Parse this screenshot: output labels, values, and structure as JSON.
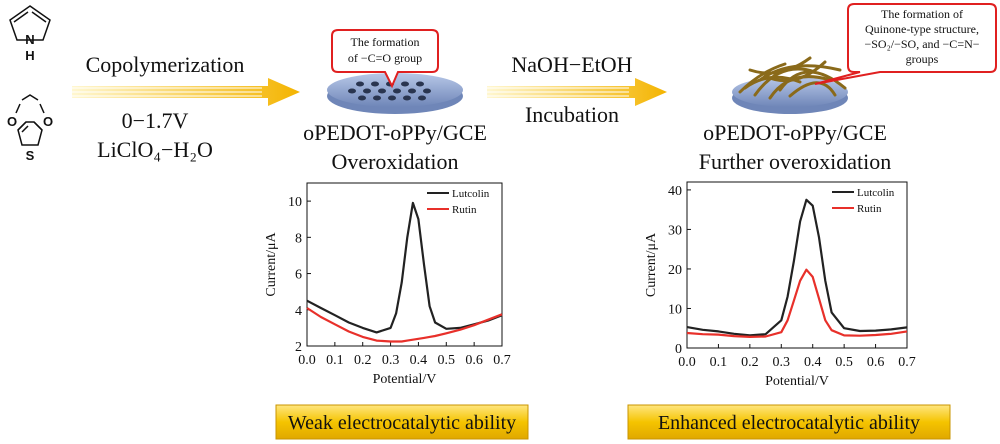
{
  "molecules": {
    "pyrrole": {
      "n": "N",
      "h": "H"
    },
    "edot": {
      "o1": "O",
      "o2": "O",
      "s": "S"
    }
  },
  "step1": {
    "label": "Copolymerization",
    "potential": "0−1.7V",
    "electrolyte": "LiClO₄−H₂O"
  },
  "callout1": {
    "lines": [
      "The formation",
      "of −C=O group"
    ]
  },
  "electrode1": {
    "name": "oPEDOT-oPPy/GCE",
    "state": "Overoxidation"
  },
  "step2": {
    "reagent": "NaOH−EtOH",
    "label": "Incubation"
  },
  "callout2": {
    "lines": [
      "The formation of",
      "Quinone-type structure,",
      "−SO₂/−SO, and −C=N−",
      "groups"
    ]
  },
  "electrode2": {
    "name": "oPEDOT-oPPy/GCE",
    "state": "Further overoxidation"
  },
  "result1": "Weak electrocatalytic ability",
  "result2": "Enhanced electrocatalytic ability",
  "chart_data": [
    {
      "type": "line",
      "xlabel": "Potential/V",
      "ylabel": "Current/μA",
      "x": [
        0,
        0.05,
        0.1,
        0.15,
        0.2,
        0.25,
        0.3,
        0.32,
        0.34,
        0.36,
        0.38,
        0.4,
        0.42,
        0.44,
        0.46,
        0.5,
        0.55,
        0.6,
        0.65,
        0.7
      ],
      "xlim": [
        0,
        0.7
      ],
      "xticks": [
        {
          "value": 0,
          "label": "0.0"
        },
        0.1,
        0.2,
        0.3,
        0.4,
        0.5,
        0.6,
        0.7
      ],
      "ylim": [
        2,
        11
      ],
      "yticks": [
        2,
        4,
        6,
        8,
        10
      ],
      "legend": "upper right",
      "series": [
        {
          "name": "Lutcolin",
          "color": "#222222",
          "values": [
            4.5,
            4.1,
            3.7,
            3.3,
            3.0,
            2.75,
            3.0,
            3.8,
            5.5,
            8.0,
            9.9,
            9.0,
            6.5,
            4.2,
            3.3,
            2.95,
            3.0,
            3.2,
            3.4,
            3.7
          ]
        },
        {
          "name": "Rutin",
          "color": "#e8302a",
          "values": [
            4.1,
            3.6,
            3.2,
            2.8,
            2.5,
            2.3,
            2.25,
            2.25,
            2.25,
            2.3,
            2.35,
            2.4,
            2.45,
            2.5,
            2.55,
            2.7,
            2.9,
            3.15,
            3.45,
            3.75
          ]
        }
      ]
    },
    {
      "type": "line",
      "xlabel": "Potential/V",
      "ylabel": "Current/μA",
      "x": [
        0,
        0.05,
        0.1,
        0.15,
        0.2,
        0.25,
        0.3,
        0.32,
        0.34,
        0.36,
        0.38,
        0.4,
        0.42,
        0.44,
        0.46,
        0.5,
        0.55,
        0.6,
        0.65,
        0.7
      ],
      "xlim": [
        0,
        0.7
      ],
      "xticks": [
        {
          "value": 0,
          "label": "0.0"
        },
        0.1,
        0.2,
        0.3,
        0.4,
        0.5,
        0.6,
        0.7
      ],
      "ylim": [
        0,
        42
      ],
      "yticks": [
        0,
        10,
        20,
        30,
        40
      ],
      "legend": "upper right",
      "series": [
        {
          "name": "Lutcolin",
          "color": "#222222",
          "values": [
            5.3,
            4.6,
            4.2,
            3.6,
            3.2,
            3.5,
            7,
            13,
            22,
            32,
            37.5,
            36,
            28,
            17,
            9,
            5,
            4.3,
            4.4,
            4.7,
            5.2
          ]
        },
        {
          "name": "Rutin",
          "color": "#e8302a",
          "values": [
            3.8,
            3.5,
            3.4,
            3.0,
            2.8,
            2.9,
            4,
            7,
            12,
            17,
            19.8,
            18,
            12.5,
            7,
            4.5,
            3.2,
            3.1,
            3.3,
            3.6,
            4.2
          ]
        }
      ]
    }
  ]
}
